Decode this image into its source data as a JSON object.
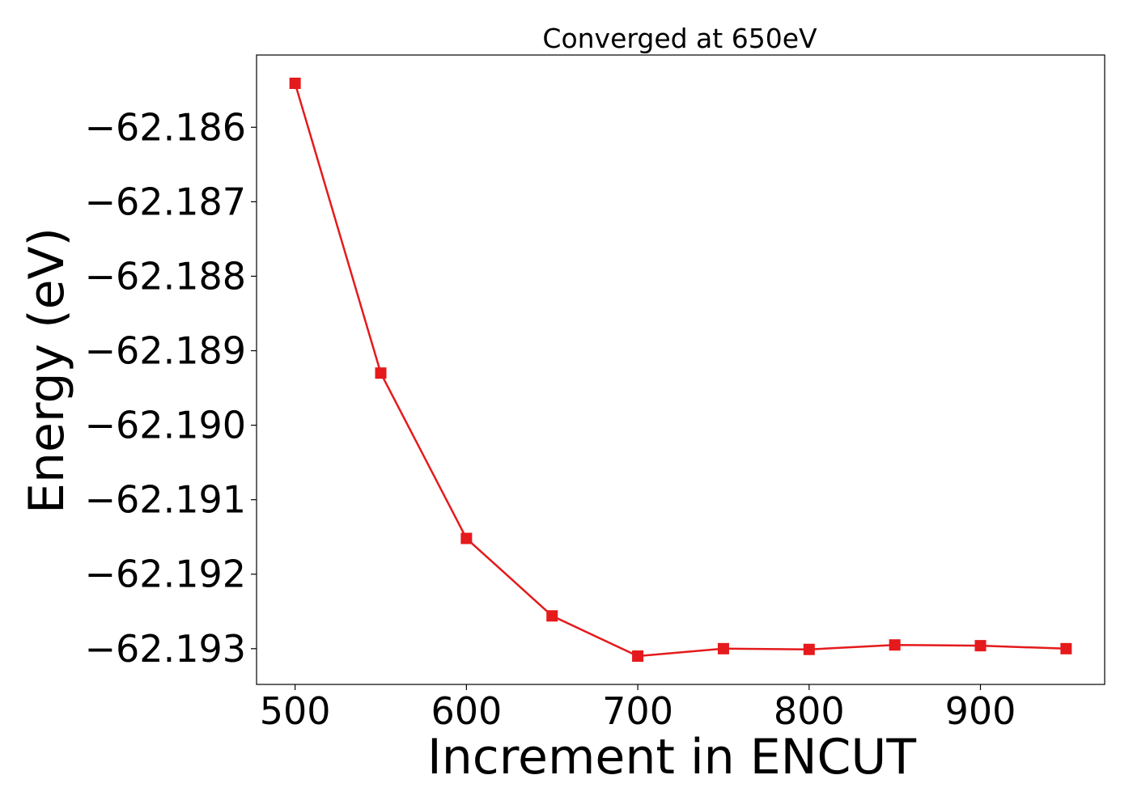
{
  "chart_data": {
    "type": "line",
    "title": "Converged at 650eV",
    "xlabel": "Increment in ENCUT",
    "ylabel": "Energy (eV)",
    "x": [
      500,
      550,
      600,
      650,
      700,
      750,
      800,
      850,
      900,
      950
    ],
    "series": [
      {
        "values": [
          -62.18541,
          -62.1893,
          -62.19152,
          -62.19256,
          -62.1931,
          -62.193,
          -62.19301,
          -62.19295,
          -62.19296,
          -62.193
        ],
        "color": "#e41a1c",
        "marker": "square"
      }
    ],
    "xlim": [
      477.5,
      972.5
    ],
    "ylim": [
      -62.19348,
      -62.18503
    ],
    "xticks": [
      500,
      600,
      700,
      800,
      900
    ],
    "xtick_labels": [
      "500",
      "600",
      "700",
      "800",
      "900"
    ],
    "yticks": [
      -62.186,
      -62.187,
      -62.188,
      -62.189,
      -62.19,
      -62.191,
      -62.192,
      -62.193
    ],
    "ytick_labels": [
      "−62.186",
      "−62.187",
      "−62.188",
      "−62.189",
      "−62.190",
      "−62.191",
      "−62.192",
      "−62.193"
    ],
    "grid": false,
    "legend": "none"
  }
}
